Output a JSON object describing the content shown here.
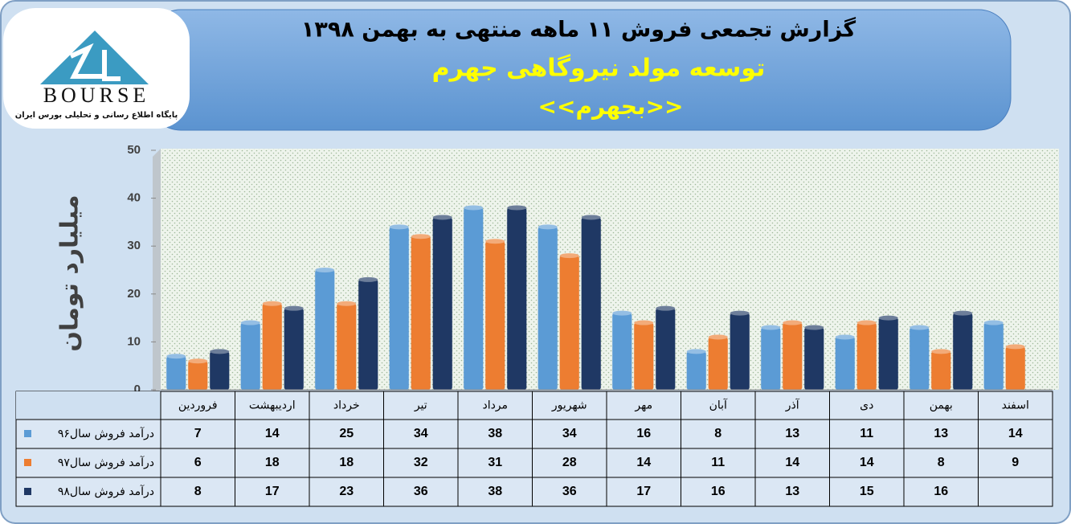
{
  "logo": {
    "text": "BOURSE",
    "subtitle": "پایگاه اطلاع رسانی و تحلیلی بورس ایران"
  },
  "chart_data": {
    "type": "bar",
    "title": "گزارش تجمعی فروش  ۱۱ ماهه منتهی به بهمن ۱۳۹۸",
    "subtitle": "توسعه مولد نیروگاهی جهرم",
    "symbol": "<<بجهرم>>",
    "y_label": "میلیارد تومان",
    "categories": [
      "فروردین",
      "اردیبهشت",
      "خرداد",
      "تیر",
      "مرداد",
      "شهریور",
      "مهر",
      "آبان",
      "آذر",
      "دی",
      "بهمن",
      "اسفند"
    ],
    "series": [
      {
        "name": "درآمد فروش سال۹۶",
        "color": "#5b9bd5",
        "values": [
          7,
          14,
          25,
          34,
          38,
          34,
          16,
          8,
          13,
          11,
          13,
          14
        ]
      },
      {
        "name": "درآمد فروش سال۹۷",
        "color": "#ed7d31",
        "values": [
          6,
          18,
          18,
          32,
          31,
          28,
          14,
          11,
          14,
          14,
          8,
          9
        ]
      },
      {
        "name": "درآمد فروش سال۹۸",
        "color": "#1f3864",
        "values": [
          8,
          17,
          23,
          36,
          38,
          36,
          17,
          16,
          13,
          15,
          16,
          null
        ]
      }
    ],
    "ylim": [
      0,
      50
    ],
    "yticks": [
      0,
      10,
      20,
      30,
      40,
      50
    ],
    "grid": false,
    "data_table": true
  }
}
